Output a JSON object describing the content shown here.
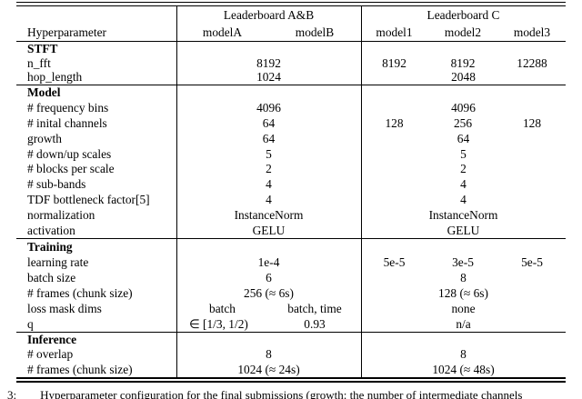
{
  "header": {
    "param_label": "Hyperparameter",
    "groups": {
      "ab": {
        "label": "Leaderboard A&B",
        "m1": "modelA",
        "m2": "modelB"
      },
      "c": {
        "label": "Leaderboard C",
        "m1": "model1",
        "m2": "model2",
        "m3": "model3"
      }
    }
  },
  "sections": [
    {
      "title": "STFT",
      "rows": [
        {
          "param": "n_fft",
          "ab": "8192",
          "c1": "8192",
          "c2": "8192",
          "c3": "12288"
        },
        {
          "param": "hop_length",
          "ab": "1024",
          "c": "2048"
        }
      ]
    },
    {
      "title": "Model",
      "rows": [
        {
          "param": "# frequency bins",
          "ab": "4096",
          "c": "4096"
        },
        {
          "param": "# inital channels",
          "ab": "64",
          "c1": "128",
          "c2": "256",
          "c3": "128"
        },
        {
          "param": "growth",
          "ab": "64",
          "c": "64"
        },
        {
          "param": "# down/up scales",
          "ab": "5",
          "c": "5"
        },
        {
          "param": "# blocks per scale",
          "ab": "2",
          "c": "2"
        },
        {
          "param": "# sub-bands",
          "ab": "4",
          "c": "4"
        },
        {
          "param": "TDF bottleneck factor[5]",
          "ab": "4",
          "c": "4"
        },
        {
          "param": "normalization",
          "ab": "InstanceNorm",
          "c": "InstanceNorm"
        },
        {
          "param": "activation",
          "ab": "GELU",
          "c": "GELU"
        }
      ]
    },
    {
      "title": "Training",
      "rows": [
        {
          "param": "learning rate",
          "ab": "1e-4",
          "c1": "5e-5",
          "c2": "3e-5",
          "c3": "5e-5"
        },
        {
          "param": "batch size",
          "ab": "6",
          "c": "8"
        },
        {
          "param": "# frames (chunk size)",
          "ab": "256 (≈ 6s)",
          "c": "128 (≈ 6s)"
        },
        {
          "param": "loss mask dims",
          "a": "batch",
          "b": "batch, time",
          "c": "none"
        },
        {
          "param": "q",
          "a": "∈ [1/3, 1/2)",
          "b": "0.93",
          "c": "n/a"
        }
      ]
    },
    {
      "title": "Inference",
      "rows": [
        {
          "param": "# overlap",
          "ab": "8",
          "c": "8"
        },
        {
          "param": "# frames (chunk size)",
          "ab": "1024 (≈ 24s)",
          "c": "1024 (≈ 48s)"
        }
      ]
    }
  ],
  "caption": {
    "label": "3:",
    "text": "Hyperparameter configuration for the final submissions (growth: the number of intermediate channels"
  }
}
